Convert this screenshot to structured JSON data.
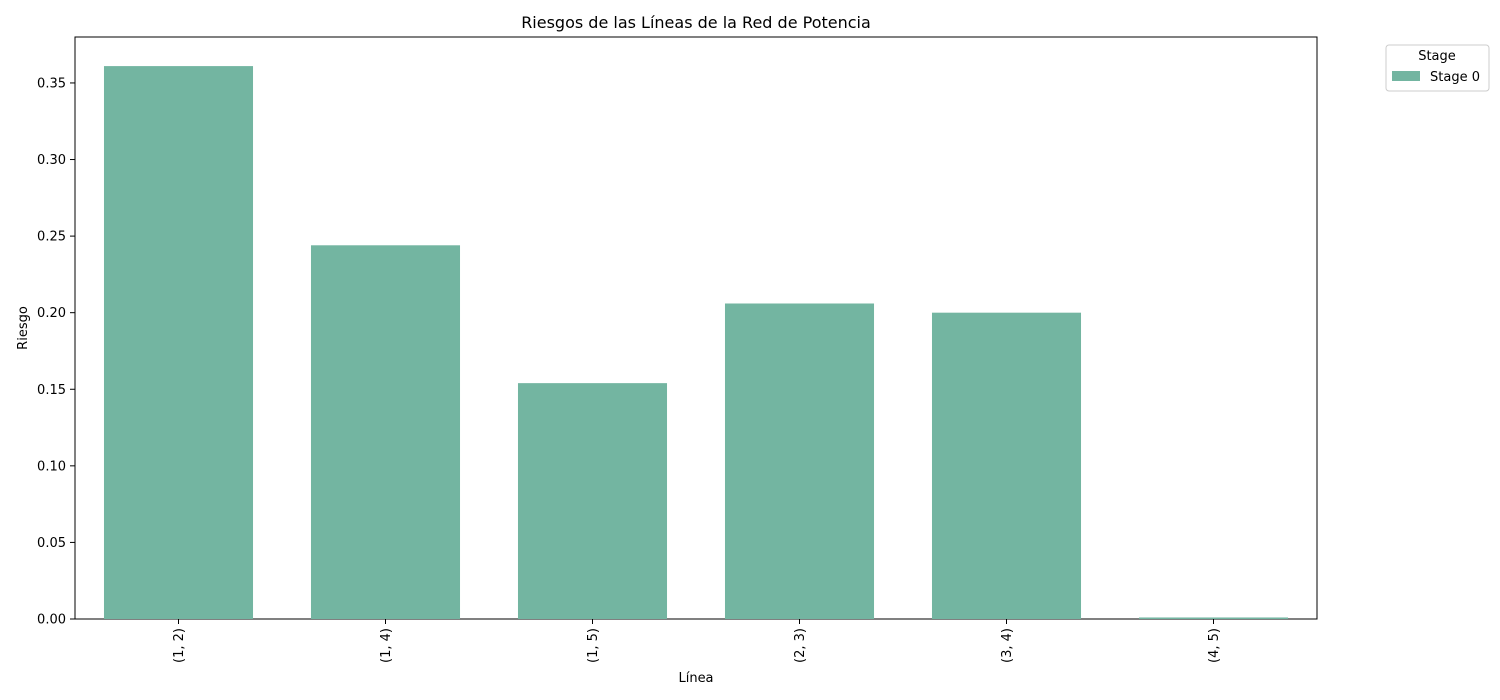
{
  "chart_data": {
    "type": "bar",
    "title": "Riesgos de las Líneas de la Red de Potencia",
    "xlabel": "Línea",
    "ylabel": "Riesgo",
    "categories": [
      "(1, 2)",
      "(1, 4)",
      "(1, 5)",
      "(2, 3)",
      "(3, 4)",
      "(4, 5)"
    ],
    "series": [
      {
        "name": "Stage 0",
        "color": "#73b5a1",
        "values": [
          0.361,
          0.244,
          0.154,
          0.206,
          0.2,
          0.001
        ]
      }
    ],
    "ylim": [
      0,
      0.38
    ],
    "yticks": [
      0.0,
      0.05,
      0.1,
      0.15,
      0.2,
      0.25,
      0.3,
      0.35
    ],
    "ytick_labels": [
      "0.00",
      "0.05",
      "0.10",
      "0.15",
      "0.20",
      "0.25",
      "0.30",
      "0.35"
    ],
    "grid": false,
    "legend": {
      "title": "Stage",
      "placement": "outside-top-right"
    }
  }
}
